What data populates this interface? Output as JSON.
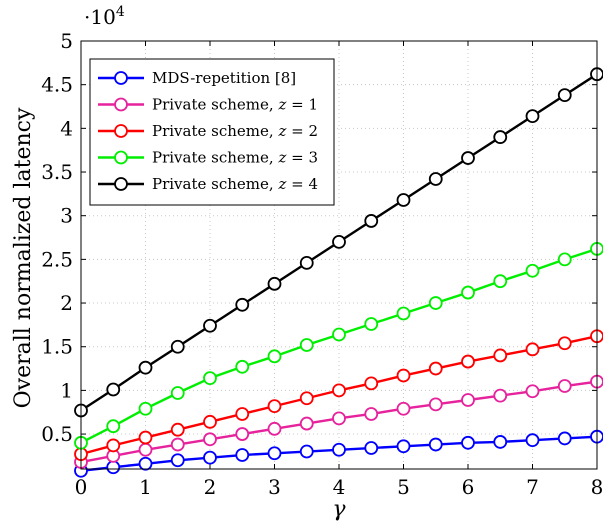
{
  "chart_data": {
    "type": "line",
    "xlabel": "γ",
    "ylabel": "Overall normalized latency",
    "y_multiplier_label": "·10",
    "y_multiplier_exp": "4",
    "xlim": [
      0,
      8
    ],
    "ylim": [
      0.1,
      5
    ],
    "xticks": [
      "0",
      "1",
      "2",
      "3",
      "4",
      "5",
      "6",
      "7",
      "8"
    ],
    "yticks": [
      "0.5",
      "1",
      "1.5",
      "2",
      "2.5",
      "3",
      "3.5",
      "4",
      "4.5",
      "5"
    ],
    "grid": true,
    "legend_position": "top-left",
    "x": [
      0,
      0.5,
      1,
      1.5,
      2,
      2.5,
      3,
      3.5,
      4,
      4.5,
      5,
      5.5,
      6,
      6.5,
      7,
      7.5,
      8
    ],
    "series": [
      {
        "name": "MDS-repetition [8]",
        "legend_main": "MDS-repetition [8]",
        "legend_var": "",
        "legend_val": "",
        "color": "#0000ff",
        "values": [
          0.08,
          0.12,
          0.16,
          0.2,
          0.23,
          0.26,
          0.28,
          0.3,
          0.32,
          0.34,
          0.36,
          0.38,
          0.4,
          0.41,
          0.43,
          0.45,
          0.47
        ]
      },
      {
        "name": "Private scheme, z = 1",
        "legend_main": "Private scheme, ",
        "legend_var": "z",
        "legend_val": " = 1",
        "color": "#e6229c",
        "values": [
          0.18,
          0.25,
          0.32,
          0.38,
          0.44,
          0.5,
          0.56,
          0.62,
          0.68,
          0.73,
          0.79,
          0.84,
          0.89,
          0.94,
          0.99,
          1.05,
          1.1
        ]
      },
      {
        "name": "Private scheme, z = 2",
        "legend_main": "Private scheme, ",
        "legend_var": "z",
        "legend_val": " = 2",
        "color": "#ff0000",
        "values": [
          0.27,
          0.37,
          0.46,
          0.55,
          0.64,
          0.73,
          0.82,
          0.91,
          1.0,
          1.08,
          1.17,
          1.25,
          1.33,
          1.4,
          1.47,
          1.54,
          1.62
        ]
      },
      {
        "name": "Private scheme, z = 3",
        "legend_main": "Private scheme, ",
        "legend_var": "z",
        "legend_val": " = 3",
        "color": "#00ee00",
        "values": [
          0.4,
          0.59,
          0.79,
          0.97,
          1.14,
          1.27,
          1.39,
          1.52,
          1.64,
          1.76,
          1.88,
          2.0,
          2.12,
          2.25,
          2.37,
          2.5,
          2.62
        ]
      },
      {
        "name": "Private scheme, z = 4",
        "legend_main": "Private scheme, ",
        "legend_var": "z",
        "legend_val": " = 4",
        "color": "#000000",
        "values": [
          0.77,
          1.01,
          1.26,
          1.5,
          1.74,
          1.98,
          2.22,
          2.46,
          2.7,
          2.94,
          3.18,
          3.42,
          3.66,
          3.9,
          4.14,
          4.38,
          4.62
        ]
      }
    ]
  }
}
